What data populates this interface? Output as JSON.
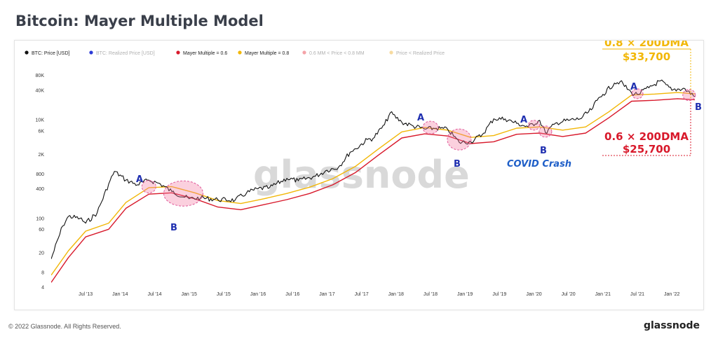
{
  "title": "Bitcoin: Mayer Multiple Model",
  "footer": {
    "copyright": "© 2022 Glassnode. All Rights Reserved.",
    "logo": "glassnode"
  },
  "watermark": "glassnode",
  "colors": {
    "price": "#111111",
    "realized": "#2c3bd6",
    "mm06": "#d8192b",
    "mm08": "#f2b707",
    "band": "#f4a3a8",
    "below_realized": "#f7dba0",
    "annotation": "#1f2fb0"
  },
  "callouts": {
    "top_label": "0.8 × 200DMA",
    "top_value": "$33,700",
    "bottom_label": "0.6 × 200DMA",
    "bottom_value": "$25,700"
  },
  "annotations": {
    "a_label": "A",
    "b_label": "B",
    "covid": "COVID Crash"
  },
  "chart_data": {
    "type": "line",
    "title": "Bitcoin: Mayer Multiple Model",
    "y_scale": "log",
    "ylim": [
      4,
      110000
    ],
    "y_ticks": [
      4,
      8,
      20,
      60,
      100,
      400,
      800,
      2000,
      6000,
      10000,
      40000,
      80000
    ],
    "y_tick_labels": [
      "4",
      "8",
      "20",
      "60",
      "100",
      "400",
      "800",
      "2K",
      "6K",
      "10K",
      "40K",
      "80K"
    ],
    "x_ticks": [
      "2013-07",
      "2014-01",
      "2014-07",
      "2015-01",
      "2015-07",
      "2016-01",
      "2016-07",
      "2017-01",
      "2017-07",
      "2018-01",
      "2018-07",
      "2019-01",
      "2019-07",
      "2020-01",
      "2020-07",
      "2021-01",
      "2021-07",
      "2022-01"
    ],
    "x_tick_labels": [
      "Jul '13",
      "Jan '14",
      "Jul '14",
      "Jan '15",
      "Jul '15",
      "Jan '16",
      "Jul '16",
      "Jan '17",
      "Jul '17",
      "Jan '18",
      "Jul '18",
      "Jan '19",
      "Jul '19",
      "Jan '20",
      "Jul '20",
      "Jan '21",
      "Jul '21",
      "Jan '22"
    ],
    "legend": [
      {
        "name": "BTC: Price [USD]",
        "color": "#111111",
        "faded": false
      },
      {
        "name": "BTC: Realized Price [USD]",
        "color": "#2c3bd6",
        "faded": true
      },
      {
        "name": "Mayer Multiple = 0.6",
        "color": "#d8192b",
        "faded": false
      },
      {
        "name": "Mayer Multiple = 0.8",
        "color": "#f2b707",
        "faded": false
      },
      {
        "name": "0.6 MM < Price < 0.8 MM",
        "color": "#f4a3a8",
        "faded": true
      },
      {
        "name": "Price < Realized Price",
        "color": "#f7dba0",
        "faded": true
      }
    ],
    "series": [
      {
        "name": "BTC: Price [USD]",
        "x": [
          "2013-01",
          "2013-03",
          "2013-04",
          "2013-06",
          "2013-07",
          "2013-09",
          "2013-11",
          "2013-12",
          "2014-02",
          "2014-04",
          "2014-06",
          "2014-08",
          "2014-10",
          "2015-01",
          "2015-03",
          "2015-06",
          "2015-09",
          "2015-11",
          "2016-01",
          "2016-03",
          "2016-06",
          "2016-08",
          "2016-11",
          "2017-01",
          "2017-03",
          "2017-05",
          "2017-06",
          "2017-08",
          "2017-09",
          "2017-11",
          "2017-12",
          "2018-02",
          "2018-04",
          "2018-06",
          "2018-08",
          "2018-10",
          "2018-12",
          "2019-02",
          "2019-04",
          "2019-06",
          "2019-08",
          "2019-10",
          "2019-12",
          "2020-02",
          "2020-03",
          "2020-05",
          "2020-07",
          "2020-09",
          "2020-11",
          "2020-12",
          "2021-01",
          "2021-03",
          "2021-04",
          "2021-06",
          "2021-07",
          "2021-09",
          "2021-11",
          "2022-01",
          "2022-03",
          "2022-05"
        ],
        "values": [
          15,
          70,
          110,
          100,
          80,
          130,
          500,
          900,
          600,
          480,
          600,
          500,
          350,
          250,
          260,
          240,
          235,
          330,
          400,
          420,
          650,
          580,
          720,
          950,
          1100,
          2200,
          2600,
          4000,
          4200,
          8000,
          14000,
          9000,
          7500,
          6500,
          6800,
          6400,
          3500,
          3600,
          5000,
          10500,
          10500,
          8500,
          7200,
          9800,
          5500,
          8800,
          9800,
          10500,
          16000,
          25000,
          33000,
          56000,
          60000,
          35000,
          33000,
          45000,
          62000,
          40000,
          44000,
          30000
        ]
      },
      {
        "name": "Mayer Multiple = 0.8",
        "x": [
          "2013-01",
          "2013-04",
          "2013-07",
          "2013-11",
          "2014-02",
          "2014-06",
          "2014-10",
          "2015-02",
          "2015-06",
          "2015-10",
          "2016-02",
          "2016-06",
          "2016-10",
          "2017-02",
          "2017-06",
          "2017-10",
          "2018-02",
          "2018-06",
          "2018-10",
          "2019-02",
          "2019-06",
          "2019-10",
          "2020-02",
          "2020-06",
          "2020-10",
          "2021-02",
          "2021-06",
          "2021-10",
          "2022-02",
          "2022-05"
        ],
        "values": [
          7,
          22,
          55,
          80,
          210,
          420,
          440,
          330,
          230,
          200,
          250,
          320,
          430,
          640,
          1150,
          2600,
          5700,
          7000,
          6200,
          4400,
          4800,
          6800,
          7200,
          6200,
          7200,
          14500,
          32000,
          33500,
          36000,
          33700
        ]
      },
      {
        "name": "Mayer Multiple = 0.6",
        "x": [
          "2013-01",
          "2013-04",
          "2013-07",
          "2013-11",
          "2014-02",
          "2014-06",
          "2014-10",
          "2015-02",
          "2015-06",
          "2015-10",
          "2016-02",
          "2016-06",
          "2016-10",
          "2017-02",
          "2017-06",
          "2017-10",
          "2018-02",
          "2018-06",
          "2018-10",
          "2019-02",
          "2019-06",
          "2019-10",
          "2020-02",
          "2020-06",
          "2020-10",
          "2021-02",
          "2021-06",
          "2021-10",
          "2022-02",
          "2022-05"
        ],
        "values": [
          5,
          16,
          42,
          60,
          160,
          310,
          330,
          250,
          170,
          150,
          190,
          240,
          320,
          480,
          860,
          1950,
          4300,
          5200,
          4700,
          3300,
          3600,
          5100,
          5400,
          4600,
          5400,
          11000,
          24000,
          25000,
          27000,
          25700
        ]
      }
    ]
  }
}
